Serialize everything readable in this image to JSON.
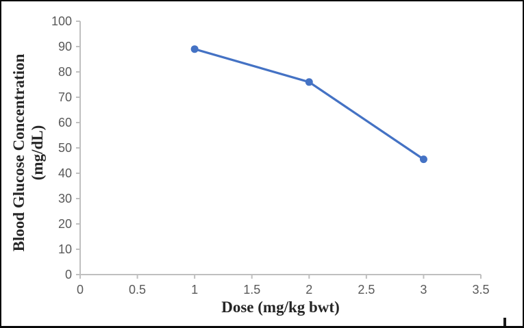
{
  "chart_data": {
    "type": "line",
    "x": [
      1,
      2,
      3
    ],
    "series": [
      {
        "name": "Blood Glucose Concentration",
        "values": [
          89,
          76,
          45.5
        ]
      }
    ],
    "title": "",
    "xlabel": "Dose (mg/kg bwt)",
    "ylabel_line1": "Blood Glucose Concentration",
    "ylabel_line2": "(mg/dL)",
    "xlim": [
      0,
      3.5
    ],
    "ylim": [
      0,
      100
    ],
    "x_ticks": [
      0,
      0.5,
      1,
      1.5,
      2,
      2.5,
      3,
      3.5
    ],
    "x_tick_labels": [
      "0",
      "0.5",
      "1",
      "1.5",
      "2",
      "2.5",
      "3",
      "3.5"
    ],
    "y_ticks": [
      0,
      10,
      20,
      30,
      40,
      50,
      60,
      70,
      80,
      90,
      100
    ],
    "y_tick_labels": [
      "0",
      "10",
      "20",
      "30",
      "40",
      "50",
      "60",
      "70",
      "80",
      "90",
      "100"
    ],
    "grid": false,
    "legend": "none",
    "marker": "circle",
    "colors": {
      "line": "#4472C4",
      "marker": "#4472C4",
      "axis": "#BFBFBF",
      "tick_label": "#595959",
      "axis_title": "#262626",
      "frame_border": "#0a0a0a"
    }
  }
}
